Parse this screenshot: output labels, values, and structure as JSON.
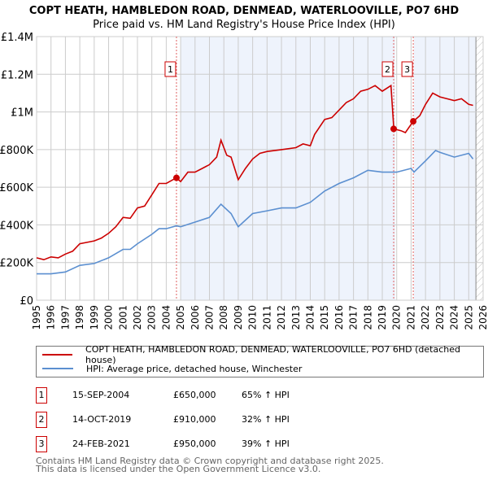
{
  "title": "COPT HEATH, HAMBLEDON ROAD, DENMEAD, WATERLOOVILLE, PO7 6HD",
  "subtitle": "Price paid vs. HM Land Registry's House Price Index (HPI)",
  "chart_data": {
    "type": "line",
    "title": "COPT HEATH, HAMBLEDON ROAD, DENMEAD, WATERLOOVILLE, PO7 6HD",
    "subtitle": "Price paid vs. HM Land Registry's House Price Index (HPI)",
    "xlim": [
      1995,
      2026
    ],
    "ylim": [
      0,
      1400000
    ],
    "x_ticks": [
      "1995",
      "1996",
      "1997",
      "1998",
      "1999",
      "2000",
      "2001",
      "2002",
      "2003",
      "2004",
      "2005",
      "2006",
      "2007",
      "2008",
      "2009",
      "2010",
      "2011",
      "2012",
      "2013",
      "2014",
      "2015",
      "2016",
      "2017",
      "2018",
      "2019",
      "2020",
      "2021",
      "2022",
      "2023",
      "2024",
      "2025",
      "2026"
    ],
    "y_ticks": [
      {
        "v": 0,
        "label": "£0"
      },
      {
        "v": 200000,
        "label": "£200K"
      },
      {
        "v": 400000,
        "label": "£400K"
      },
      {
        "v": 600000,
        "label": "£600K"
      },
      {
        "v": 800000,
        "label": "£800K"
      },
      {
        "v": 1000000,
        "label": "£1M"
      },
      {
        "v": 1200000,
        "label": "£1.2M"
      },
      {
        "v": 1400000,
        "label": "£1.4M"
      }
    ],
    "grid": true,
    "shaded_ranges": [
      [
        2005.0,
        2019.9
      ],
      [
        2021.2,
        2025.5
      ]
    ],
    "hatched_from": 2025.5,
    "series": [
      {
        "name": "COPT HEATH, HAMBLEDON ROAD, DENMEAD, WATERLOOVILLE, PO7 6HD (detached house)",
        "color": "#cc0000",
        "x": [
          1995,
          1995.5,
          1996,
          1996.5,
          1997,
          1997.5,
          1998,
          1999,
          1999.5,
          2000,
          2000.5,
          2001,
          2001.5,
          2002,
          2002.5,
          2003,
          2003.5,
          2004,
          2004.7,
          2005,
          2005.5,
          2006,
          2006.5,
          2007,
          2007.5,
          2007.8,
          2008.2,
          2008.5,
          2009,
          2009.5,
          2010,
          2010.5,
          2011,
          2012,
          2013,
          2013.5,
          2014,
          2014.3,
          2015,
          2015.5,
          2016,
          2016.5,
          2017,
          2017.5,
          2018,
          2018.5,
          2019,
          2019.6,
          2019.8,
          2020.3,
          2020.6,
          2021.15,
          2021.6,
          2022,
          2022.5,
          2023,
          2023.5,
          2024,
          2024.5,
          2025,
          2025.3
        ],
        "y": [
          225000,
          215000,
          230000,
          225000,
          245000,
          260000,
          300000,
          315000,
          330000,
          355000,
          390000,
          440000,
          435000,
          490000,
          500000,
          560000,
          620000,
          620000,
          650000,
          630000,
          680000,
          680000,
          700000,
          720000,
          760000,
          850000,
          770000,
          760000,
          640000,
          700000,
          750000,
          780000,
          790000,
          800000,
          810000,
          830000,
          820000,
          880000,
          960000,
          970000,
          1010000,
          1050000,
          1070000,
          1110000,
          1120000,
          1140000,
          1110000,
          1140000,
          910000,
          900000,
          890000,
          950000,
          980000,
          1040000,
          1100000,
          1080000,
          1070000,
          1060000,
          1070000,
          1040000,
          1035000
        ]
      },
      {
        "name": "HPI: Average price, detached house, Winchester",
        "color": "#5b8fd0",
        "x": [
          1995,
          1996,
          1997,
          1998,
          1999,
          2000,
          2001,
          2001.5,
          2002,
          2003,
          2003.5,
          2004,
          2004.7,
          2005,
          2006,
          2007,
          2007.8,
          2008.5,
          2009,
          2010,
          2011,
          2012,
          2013,
          2014,
          2015,
          2016,
          2017,
          2018,
          2019,
          2020,
          2021,
          2021.2,
          2022,
          2022.7,
          2023,
          2024,
          2025,
          2025.3
        ],
        "y": [
          140000,
          140000,
          150000,
          185000,
          195000,
          225000,
          270000,
          270000,
          300000,
          350000,
          380000,
          380000,
          395000,
          390000,
          415000,
          440000,
          510000,
          460000,
          390000,
          460000,
          475000,
          490000,
          490000,
          520000,
          580000,
          620000,
          650000,
          690000,
          680000,
          680000,
          700000,
          680000,
          740000,
          795000,
          785000,
          760000,
          780000,
          750000
        ]
      }
    ],
    "sales": [
      {
        "label": "1",
        "x": 2004.71,
        "y": 650000
      },
      {
        "label": "2",
        "x": 2019.79,
        "y": 910000
      },
      {
        "label": "3",
        "x": 2021.15,
        "y": 950000
      }
    ]
  },
  "legend": {
    "property": "COPT HEATH, HAMBLEDON ROAD, DENMEAD, WATERLOOVILLE, PO7 6HD (detached house)",
    "hpi": "HPI: Average price, detached house, Winchester"
  },
  "transactions": [
    {
      "num": "1",
      "date": "15-SEP-2004",
      "price": "£650,000",
      "hpi": "65% ↑ HPI"
    },
    {
      "num": "2",
      "date": "14-OCT-2019",
      "price": "£910,000",
      "hpi": "32% ↑ HPI"
    },
    {
      "num": "3",
      "date": "24-FEB-2021",
      "price": "£950,000",
      "hpi": "39% ↑ HPI"
    }
  ],
  "footer": {
    "line1": "Contains HM Land Registry data © Crown copyright and database right 2025.",
    "line2": "This data is licensed under the Open Government Licence v3.0."
  }
}
